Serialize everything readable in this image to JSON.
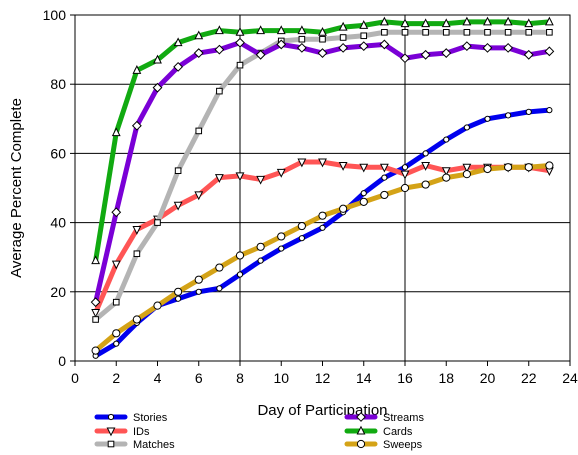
{
  "chart_data": {
    "type": "line",
    "xlabel": "Day of Participation",
    "ylabel": "Average Percent Complete",
    "xlim": [
      0,
      24
    ],
    "ylim": [
      0,
      100
    ],
    "x_ticks": [
      "0",
      "2",
      "4",
      "6",
      "8",
      "10",
      "12",
      "14",
      "16",
      "18",
      "20",
      "22",
      "24"
    ],
    "y_ticks": [
      "0",
      "20",
      "40",
      "60",
      "80",
      "100"
    ],
    "grid": "vertical at x=8 and x=16; horizontal every 20",
    "legend": "below plot, two columns",
    "series": [
      {
        "name": "Stories",
        "color": "#0000ee",
        "marker": "circle",
        "x": [
          1,
          2,
          3,
          4,
          5,
          6,
          7,
          8,
          9,
          10,
          11,
          12,
          13,
          14,
          15,
          16,
          17,
          18,
          19,
          20,
          21,
          22,
          23
        ],
        "y": [
          1.5,
          5,
          11,
          16,
          18,
          20,
          21,
          25,
          29,
          32.5,
          35.5,
          38.5,
          43,
          48.5,
          53,
          56,
          60,
          64,
          67.5,
          70,
          71,
          72,
          72.5
        ]
      },
      {
        "name": "IDs",
        "color": "#ff5555",
        "marker": "triangle-down",
        "x": [
          1,
          2,
          3,
          4,
          5,
          6,
          7,
          8,
          9,
          10,
          11,
          12,
          13,
          14,
          15,
          16,
          17,
          18,
          19,
          20,
          21,
          22,
          23
        ],
        "y": [
          14,
          28,
          38,
          41,
          45,
          48,
          53,
          53.5,
          52.5,
          54.5,
          57.5,
          57.5,
          56.5,
          56,
          56,
          54,
          56.5,
          55,
          56,
          56,
          56,
          56,
          55
        ]
      },
      {
        "name": "Matches",
        "color": "#b4b4b4",
        "marker": "square",
        "x": [
          1,
          2,
          3,
          4,
          5,
          6,
          7,
          8,
          9,
          10,
          11,
          12,
          13,
          14,
          15,
          16,
          17,
          18,
          19,
          20,
          21,
          22,
          23
        ],
        "y": [
          12,
          17,
          31,
          40,
          55,
          66.5,
          78,
          85.5,
          89,
          92.5,
          93,
          93,
          93.5,
          94,
          95,
          95,
          95,
          95,
          95,
          95,
          95,
          95,
          95
        ]
      },
      {
        "name": "Streams",
        "color": "#7a00d6",
        "marker": "diamond",
        "x": [
          1,
          2,
          3,
          4,
          5,
          6,
          7,
          8,
          9,
          10,
          11,
          12,
          13,
          14,
          15,
          16,
          17,
          18,
          19,
          20,
          21,
          22,
          23
        ],
        "y": [
          17,
          43,
          68,
          79,
          85,
          89,
          90,
          92,
          88.5,
          91.5,
          90.5,
          89,
          90.5,
          91,
          91.5,
          87.5,
          88.5,
          89,
          91,
          90.5,
          90.5,
          88.5,
          89.5
        ]
      },
      {
        "name": "Cards",
        "color": "#11aa11",
        "marker": "triangle-up",
        "x": [
          1,
          2,
          3,
          4,
          5,
          6,
          7,
          8,
          9,
          10,
          11,
          12,
          13,
          14,
          15,
          16,
          17,
          18,
          19,
          20,
          21,
          22,
          23
        ],
        "y": [
          29,
          66,
          84,
          87,
          92,
          94,
          95.5,
          95,
          95.5,
          95.5,
          95.5,
          95,
          96.5,
          97,
          98,
          97.5,
          97.5,
          97.5,
          98,
          98,
          98,
          97.5,
          98
        ]
      },
      {
        "name": "Sweeps",
        "color": "#d4a317",
        "marker": "circle-open",
        "x": [
          1,
          2,
          3,
          4,
          5,
          6,
          7,
          8,
          9,
          10,
          11,
          12,
          13,
          14,
          15,
          16,
          17,
          18,
          19,
          20,
          21,
          22,
          23
        ],
        "y": [
          3,
          8,
          12,
          16,
          20,
          23.5,
          27,
          30.5,
          33,
          36,
          39,
          42,
          44,
          46,
          48,
          50,
          51,
          53,
          54,
          55.5,
          56,
          56,
          56.5
        ]
      }
    ]
  }
}
